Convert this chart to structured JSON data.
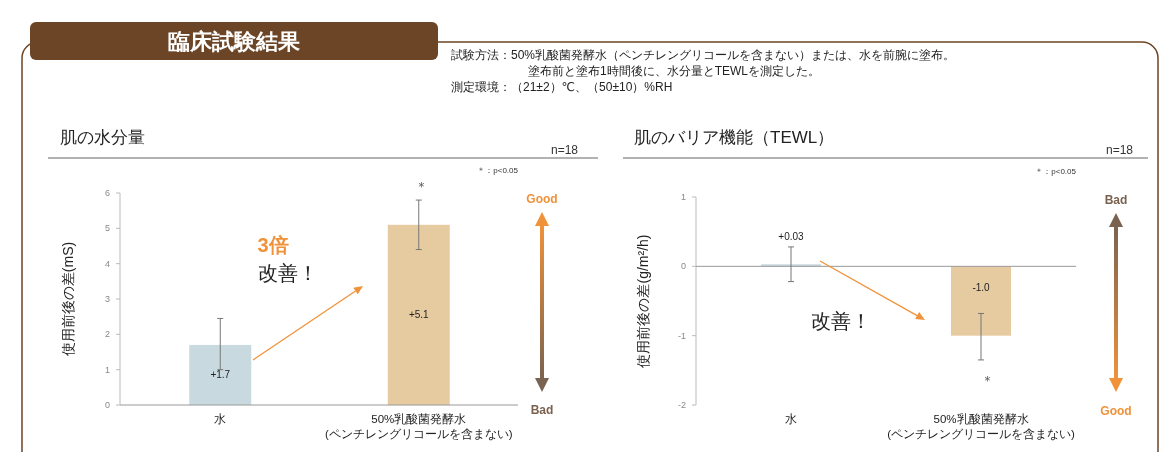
{
  "chart_data": [
    {
      "type": "other",
      "title": "臨床試験結果",
      "annotations": [
        "試験方法：50%乳酸菌発酵水（ペンチレングリコールを含まない）または、水を前腕に塗布。",
        "塗布前と塗布1時間後に、水分量とTEWLを測定した。",
        "測定環境：（21±2）℃、（50±10）%RH"
      ]
    },
    {
      "type": "bar",
      "title": "肌の水分量",
      "ylabel": "使用前後の差(mS)",
      "categories": [
        "水",
        "50%乳酸菌発酵水\n(ペンチレングリコールを含まない)"
      ],
      "values": [
        1.7,
        5.1
      ],
      "colors": [
        "#c8d9df",
        "#e6caa0"
      ],
      "errors": [
        [
          1.0,
          2.45
        ],
        [
          4.4,
          5.8
        ]
      ],
      "value_labels": [
        "+1.7",
        "+5.1"
      ],
      "ylim": [
        0,
        6
      ],
      "yticks": [
        0,
        1,
        2,
        3,
        4,
        5,
        6
      ],
      "annotations": [
        "n=18",
        "＊：p<0.05",
        "3倍",
        "改善！",
        "Good",
        "Bad",
        "＊"
      ]
    },
    {
      "type": "bar",
      "title": "肌のバリア機能（TEWL）",
      "ylabel": "使用前後の差(g/m²/h)",
      "categories": [
        "水",
        "50%乳酸菌発酵水\n(ペンチレングリコールを含まない)"
      ],
      "values": [
        0.03,
        -1.0
      ],
      "colors": [
        "#c8d9df",
        "#e6caa0"
      ],
      "errors": [
        [
          -0.22,
          0.28
        ],
        [
          -1.35,
          -0.68
        ]
      ],
      "value_labels": [
        "+0.03",
        "-1.0"
      ],
      "ylim": [
        -2,
        1
      ],
      "yticks": [
        -2,
        -1,
        0,
        1
      ],
      "annotations": [
        "n=18",
        "＊：p<0.05",
        "改善！",
        "Bad",
        "Good",
        "＊"
      ]
    }
  ]
}
